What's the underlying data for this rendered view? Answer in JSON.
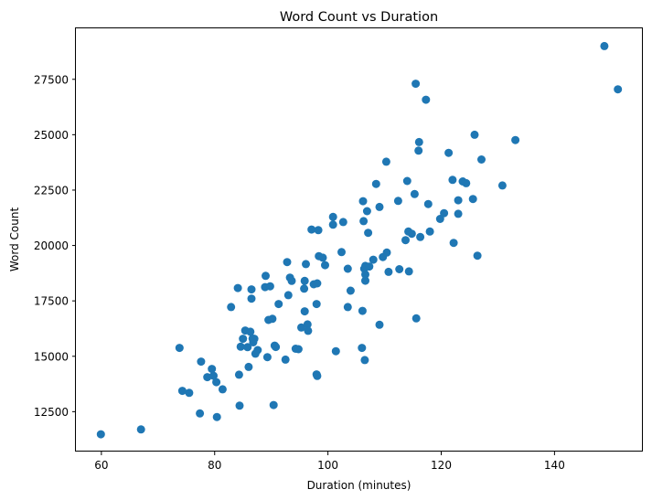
{
  "chart_data": {
    "type": "scatter",
    "title": "Word Count vs Duration",
    "xlabel": "Duration (minutes)",
    "ylabel": "Word Count",
    "xlim": [
      55.5,
      155.6
    ],
    "ylim": [
      10700,
      29800
    ],
    "xticks": [
      60,
      80,
      100,
      120,
      140
    ],
    "yticks": [
      12500,
      15000,
      17500,
      20000,
      22500,
      25000,
      27500
    ],
    "grid": false,
    "point_color": "#1f77b4",
    "points": [
      [
        59.9,
        11480
      ],
      [
        67.0,
        11700
      ],
      [
        73.8,
        15380
      ],
      [
        74.3,
        13440
      ],
      [
        75.5,
        13350
      ],
      [
        77.4,
        12420
      ],
      [
        77.6,
        14760
      ],
      [
        78.7,
        14060
      ],
      [
        79.5,
        14430
      ],
      [
        79.8,
        14120
      ],
      [
        80.3,
        13830
      ],
      [
        80.4,
        12260
      ],
      [
        81.4,
        13510
      ],
      [
        82.9,
        17220
      ],
      [
        84.1,
        18080
      ],
      [
        84.3,
        14170
      ],
      [
        84.4,
        12770
      ],
      [
        84.6,
        15430
      ],
      [
        85.0,
        15790
      ],
      [
        85.4,
        16160
      ],
      [
        85.8,
        15410
      ],
      [
        86.0,
        14520
      ],
      [
        86.3,
        16110
      ],
      [
        86.5,
        18020
      ],
      [
        86.5,
        17600
      ],
      [
        86.7,
        15800
      ],
      [
        86.8,
        15630
      ],
      [
        87.0,
        15790
      ],
      [
        87.2,
        15120
      ],
      [
        87.6,
        15280
      ],
      [
        88.9,
        18120
      ],
      [
        89.0,
        18630
      ],
      [
        89.3,
        14960
      ],
      [
        89.5,
        16640
      ],
      [
        89.8,
        18160
      ],
      [
        90.2,
        16690
      ],
      [
        90.4,
        12800
      ],
      [
        90.6,
        15480
      ],
      [
        90.8,
        15420
      ],
      [
        91.3,
        17360
      ],
      [
        92.5,
        14850
      ],
      [
        92.8,
        19250
      ],
      [
        93.0,
        17760
      ],
      [
        93.3,
        18550
      ],
      [
        93.6,
        18400
      ],
      [
        94.3,
        15340
      ],
      [
        94.8,
        15320
      ],
      [
        95.3,
        16300
      ],
      [
        95.8,
        18050
      ],
      [
        95.9,
        17030
      ],
      [
        95.9,
        18400
      ],
      [
        96.1,
        19160
      ],
      [
        96.4,
        16440
      ],
      [
        96.5,
        16150
      ],
      [
        97.1,
        20720
      ],
      [
        97.5,
        18250
      ],
      [
        98.0,
        17360
      ],
      [
        98.0,
        14180
      ],
      [
        98.1,
        14110
      ],
      [
        98.1,
        18290
      ],
      [
        98.3,
        20690
      ],
      [
        98.4,
        19520
      ],
      [
        99.1,
        19450
      ],
      [
        99.5,
        19110
      ],
      [
        100.9,
        20940
      ],
      [
        100.9,
        21290
      ],
      [
        101.4,
        15230
      ],
      [
        102.4,
        19700
      ],
      [
        102.7,
        21060
      ],
      [
        103.5,
        18950
      ],
      [
        103.5,
        17220
      ],
      [
        104.0,
        17960
      ],
      [
        106.0,
        15380
      ],
      [
        106.1,
        17050
      ],
      [
        106.2,
        22000
      ],
      [
        106.3,
        21100
      ],
      [
        106.4,
        18950
      ],
      [
        106.5,
        14830
      ],
      [
        106.6,
        19080
      ],
      [
        106.6,
        18410
      ],
      [
        106.6,
        18690
      ],
      [
        106.9,
        21550
      ],
      [
        107.1,
        20570
      ],
      [
        107.3,
        19050
      ],
      [
        108.0,
        19360
      ],
      [
        108.5,
        22780
      ],
      [
        109.1,
        16420
      ],
      [
        109.1,
        21740
      ],
      [
        109.7,
        19480
      ],
      [
        110.3,
        23780
      ],
      [
        110.4,
        19680
      ],
      [
        110.7,
        18810
      ],
      [
        112.4,
        22010
      ],
      [
        112.6,
        18930
      ],
      [
        113.7,
        20240
      ],
      [
        114.0,
        22910
      ],
      [
        114.2,
        20630
      ],
      [
        114.3,
        18830
      ],
      [
        114.8,
        20530
      ],
      [
        115.3,
        22320
      ],
      [
        115.5,
        27300
      ],
      [
        115.6,
        16710
      ],
      [
        116.0,
        24280
      ],
      [
        116.1,
        24670
      ],
      [
        116.3,
        20380
      ],
      [
        117.3,
        26580
      ],
      [
        117.7,
        21870
      ],
      [
        118.0,
        20630
      ],
      [
        119.8,
        21200
      ],
      [
        120.5,
        21460
      ],
      [
        121.3,
        24180
      ],
      [
        122.0,
        22960
      ],
      [
        122.2,
        20120
      ],
      [
        123.0,
        22040
      ],
      [
        123.0,
        21430
      ],
      [
        123.8,
        22890
      ],
      [
        124.4,
        22810
      ],
      [
        125.6,
        22100
      ],
      [
        125.9,
        25000
      ],
      [
        126.4,
        19540
      ],
      [
        127.1,
        23880
      ],
      [
        130.8,
        22710
      ],
      [
        133.1,
        24760
      ],
      [
        148.8,
        29000
      ],
      [
        151.2,
        27050
      ]
    ]
  }
}
